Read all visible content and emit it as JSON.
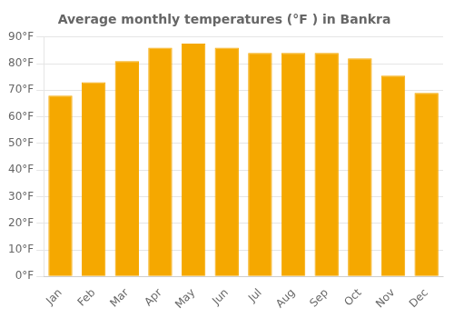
{
  "chart_data": {
    "type": "bar",
    "title": "Average monthly temperatures (°F ) in Bankra",
    "categories": [
      "Jan",
      "Feb",
      "Mar",
      "Apr",
      "May",
      "Jun",
      "Jul",
      "Aug",
      "Sep",
      "Oct",
      "Nov",
      "Dec"
    ],
    "values": [
      68,
      73,
      81,
      86,
      87.5,
      86,
      84,
      84,
      84,
      82,
      75.5,
      69
    ],
    "color": "#F5A800",
    "ylim": [
      0,
      90
    ],
    "yticks": [
      {
        "value": 0,
        "label": "0°F"
      },
      {
        "value": 10,
        "label": "10°F"
      },
      {
        "value": 20,
        "label": "20°F"
      },
      {
        "value": 30,
        "label": "30°F"
      },
      {
        "value": 40,
        "label": "40°F"
      },
      {
        "value": 50,
        "label": "50°F"
      },
      {
        "value": 60,
        "label": "60°F"
      },
      {
        "value": 70,
        "label": "70°F"
      },
      {
        "value": 80,
        "label": "80°F"
      },
      {
        "value": 90,
        "label": "90°F"
      }
    ],
    "grid": true
  }
}
